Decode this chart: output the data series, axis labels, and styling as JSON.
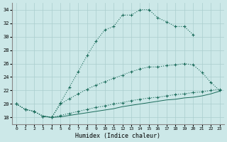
{
  "xlabel": "Humidex (Indice chaleur)",
  "bg_color": "#cce8e8",
  "line_color": "#1a6b5a",
  "grid_color": "#aacece",
  "xlim": [
    -0.5,
    23.5
  ],
  "ylim": [
    17.0,
    35.0
  ],
  "yticks": [
    18,
    20,
    22,
    24,
    26,
    28,
    30,
    32,
    34
  ],
  "xticks": [
    0,
    1,
    2,
    3,
    4,
    5,
    6,
    7,
    8,
    9,
    10,
    11,
    12,
    13,
    14,
    15,
    16,
    17,
    18,
    19,
    20,
    21,
    22,
    23
  ],
  "line1_x": [
    0,
    1,
    2,
    3,
    4,
    5,
    6,
    7,
    8,
    9,
    10,
    11,
    12,
    13,
    14,
    15,
    16,
    17,
    18,
    19,
    20
  ],
  "line1_y": [
    20.0,
    19.2,
    18.9,
    18.2,
    18.0,
    20.2,
    22.5,
    24.8,
    27.2,
    29.3,
    31.0,
    31.5,
    33.2,
    33.2,
    34.0,
    34.0,
    32.8,
    32.2,
    31.5,
    31.5,
    30.3
  ],
  "line2_x": [
    0,
    1,
    2,
    3,
    4,
    5,
    6,
    7,
    8,
    9,
    10,
    11,
    12,
    13,
    14,
    15,
    16,
    17,
    18,
    19,
    20,
    21,
    22,
    23
  ],
  "line2_y": [
    20.0,
    19.2,
    18.9,
    18.2,
    18.0,
    20.0,
    20.8,
    21.5,
    22.2,
    22.8,
    23.3,
    23.8,
    24.3,
    24.8,
    25.2,
    25.5,
    25.5,
    25.7,
    25.8,
    26.0,
    25.8,
    24.7,
    23.2,
    22.0
  ],
  "line3_x": [
    0,
    1,
    2,
    3,
    4,
    5,
    6,
    7,
    8,
    9,
    10,
    11,
    12,
    13,
    14,
    15,
    16,
    17,
    18,
    19,
    20,
    21,
    22,
    23
  ],
  "line3_y": [
    20.0,
    19.2,
    18.9,
    18.2,
    18.0,
    18.3,
    18.6,
    18.9,
    19.2,
    19.5,
    19.7,
    20.0,
    20.2,
    20.5,
    20.7,
    20.9,
    21.0,
    21.2,
    21.4,
    21.5,
    21.7,
    21.8,
    22.0,
    22.2
  ],
  "line4_x": [
    3,
    4,
    5,
    6,
    7,
    8,
    9,
    10,
    11,
    12,
    13,
    14,
    15,
    16,
    17,
    18,
    19,
    20,
    21,
    22,
    23
  ],
  "line4_y": [
    18.2,
    18.0,
    18.1,
    18.3,
    18.5,
    18.7,
    18.9,
    19.1,
    19.3,
    19.6,
    19.8,
    20.0,
    20.2,
    20.4,
    20.6,
    20.7,
    20.9,
    21.0,
    21.2,
    21.5,
    21.9
  ]
}
